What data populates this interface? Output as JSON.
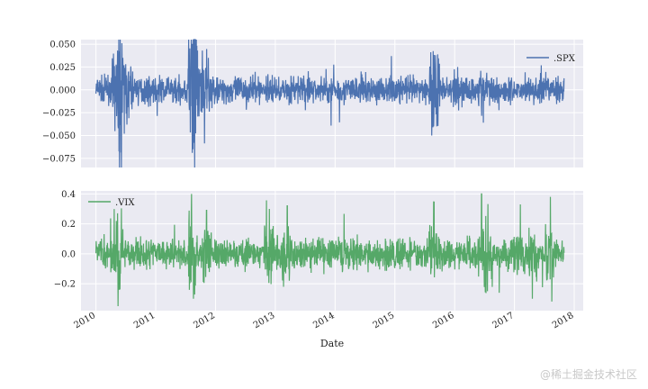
{
  "chart_data": [
    {
      "type": "line",
      "series": [
        {
          "name": ".SPX",
          "color": "#4c72b0"
        }
      ],
      "x_range": [
        "2010-01-04",
        "2017-10-31"
      ],
      "ylim": [
        -0.085,
        0.055
      ],
      "yticks": [
        "0.050",
        "0.025",
        "0.000",
        "−0.025",
        "−0.050",
        "−0.075"
      ],
      "ytick_values": [
        0.05,
        0.025,
        0.0,
        -0.025,
        -0.05,
        -0.075
      ],
      "noise_level": 0.009,
      "spikes": [
        {
          "x": 2010.36,
          "y": 0.043
        },
        {
          "x": 2010.37,
          "y": -0.039
        },
        {
          "x": 2010.45,
          "y": 0.035
        },
        {
          "x": 2010.55,
          "y": -0.031
        },
        {
          "x": 2011.6,
          "y": 0.046
        },
        {
          "x": 2011.61,
          "y": -0.069
        },
        {
          "x": 2011.63,
          "y": -0.058
        },
        {
          "x": 2011.7,
          "y": 0.043
        },
        {
          "x": 2011.78,
          "y": 0.043
        },
        {
          "x": 2011.88,
          "y": 0.035
        },
        {
          "x": 2015.65,
          "y": -0.04
        },
        {
          "x": 2015.68,
          "y": 0.038
        },
        {
          "x": 2016.48,
          "y": -0.036
        },
        {
          "x": 2016.05,
          "y": 0.025
        }
      ],
      "legend": "top-right",
      "grid": true
    },
    {
      "type": "line",
      "series": [
        {
          "name": ".VIX",
          "color": "#55a868"
        }
      ],
      "x_range": [
        "2010-01-04",
        "2017-10-31"
      ],
      "ylim": [
        -0.38,
        0.42
      ],
      "yticks": [
        "0.4",
        "0.2",
        "0.0",
        "−0.2"
      ],
      "ytick_values": [
        0.4,
        0.2,
        0.0,
        -0.2
      ],
      "noise_level": 0.06,
      "spikes": [
        {
          "x": 2010.36,
          "y": 0.27
        },
        {
          "x": 2010.37,
          "y": -0.35
        },
        {
          "x": 2011.6,
          "y": 0.4
        },
        {
          "x": 2011.63,
          "y": -0.3
        },
        {
          "x": 2011.85,
          "y": 0.29
        },
        {
          "x": 2012.9,
          "y": 0.3
        },
        {
          "x": 2013.2,
          "y": 0.32
        },
        {
          "x": 2015.65,
          "y": 0.35
        },
        {
          "x": 2016.45,
          "y": 0.4
        },
        {
          "x": 2016.55,
          "y": -0.25
        },
        {
          "x": 2017.1,
          "y": 0.33
        },
        {
          "x": 2017.3,
          "y": -0.3
        },
        {
          "x": 2017.6,
          "y": 0.38
        }
      ],
      "legend": "top-left",
      "grid": true
    }
  ],
  "x_axis": {
    "label": "Date",
    "ticks": [
      "2010",
      "2011",
      "2012",
      "2013",
      "2014",
      "2015",
      "2016",
      "2017",
      "2018"
    ],
    "tick_values": [
      2010,
      2011,
      2012,
      2013,
      2014,
      2015,
      2016,
      2017,
      2018
    ]
  },
  "watermark": "@稀土掘金技术社区"
}
